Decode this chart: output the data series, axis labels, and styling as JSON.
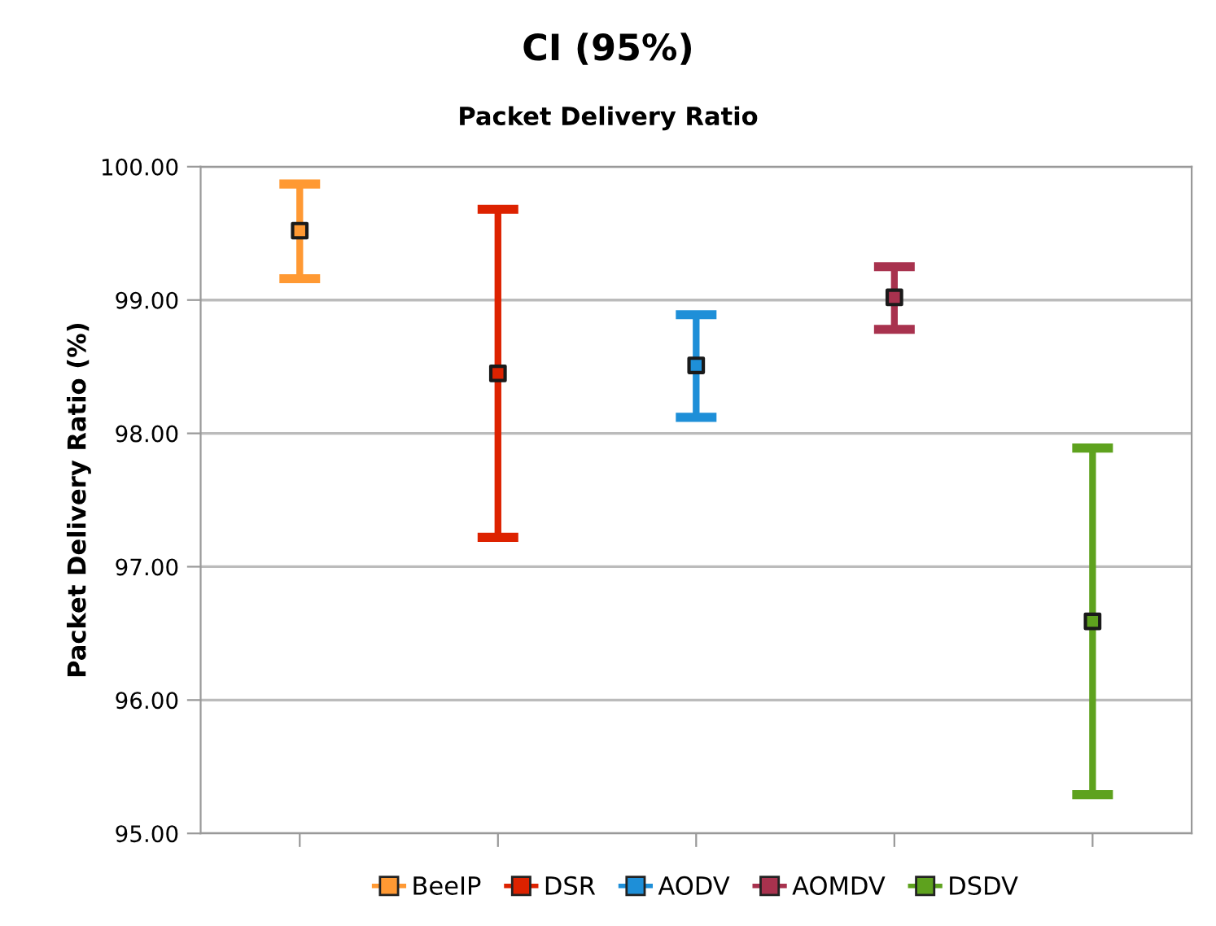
{
  "chart_data": {
    "type": "scatter",
    "title": "CI (95%)",
    "subtitle": "Packet Delivery Ratio",
    "ylabel": "Packet Delivery Ratio (%)",
    "categories": [
      null,
      null,
      null,
      null,
      null
    ],
    "series": [
      {
        "name": "BeeIP",
        "color": "#ff9933",
        "values": [
          99.52,
          null,
          null,
          null,
          null
        ],
        "errors": [
          [
            99.16,
            99.87
          ],
          null,
          null,
          null,
          null
        ]
      },
      {
        "name": "DSR",
        "color": "#dd2200",
        "values": [
          null,
          98.45,
          null,
          null,
          null
        ],
        "errors": [
          null,
          [
            97.22,
            99.68
          ],
          null,
          null,
          null
        ]
      },
      {
        "name": "AODV",
        "color": "#1e8fd8",
        "values": [
          null,
          null,
          98.51,
          null,
          null
        ],
        "errors": [
          null,
          null,
          [
            98.12,
            98.89
          ],
          null,
          null
        ]
      },
      {
        "name": "AOMDV",
        "color": "#a8324e",
        "values": [
          null,
          null,
          null,
          99.02,
          null
        ],
        "errors": [
          null,
          null,
          null,
          [
            98.78,
            99.25
          ],
          null
        ]
      },
      {
        "name": "DSDV",
        "color": "#5ea21e",
        "values": [
          null,
          null,
          null,
          null,
          96.59
        ],
        "errors": [
          null,
          null,
          null,
          null,
          [
            95.29,
            97.89
          ]
        ]
      }
    ],
    "ylim": [
      95,
      100
    ],
    "yticks": [
      {
        "value": 95,
        "label": "95.00"
      },
      {
        "value": 96,
        "label": "96.00"
      },
      {
        "value": 97,
        "label": "97.00"
      },
      {
        "value": 98,
        "label": "98.00"
      },
      {
        "value": 99,
        "label": "99.00"
      },
      {
        "value": 100,
        "label": "100.00"
      }
    ],
    "grid": "y",
    "legend": "bottom",
    "tick_labels": "y"
  }
}
